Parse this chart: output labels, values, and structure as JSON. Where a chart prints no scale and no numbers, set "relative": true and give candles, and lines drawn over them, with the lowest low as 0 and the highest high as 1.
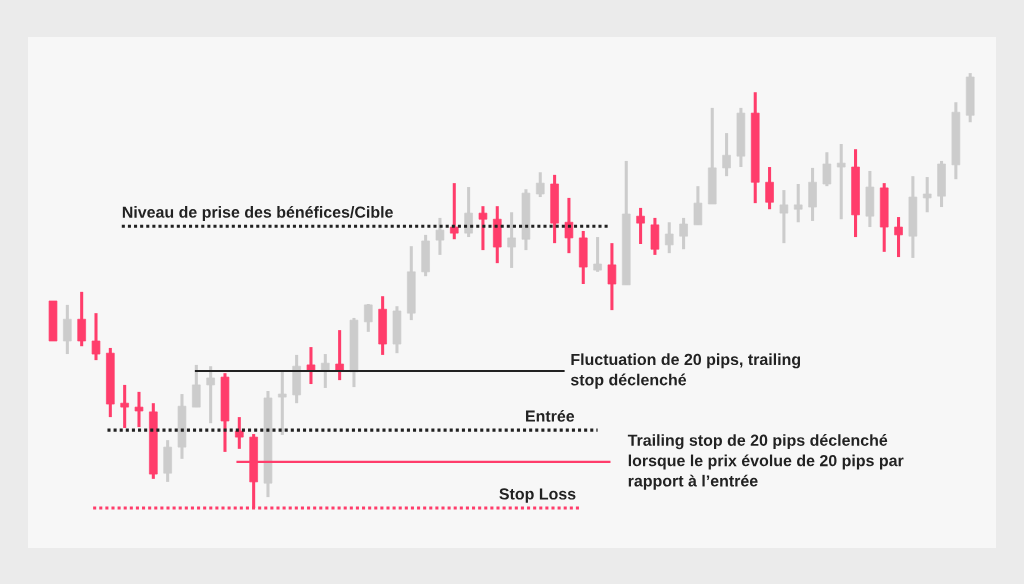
{
  "chart_data": {
    "type": "candlestick",
    "relative": true,
    "categories": [
      null,
      null,
      null,
      null,
      null,
      null,
      null,
      null,
      null,
      null,
      null,
      null,
      null,
      null,
      null,
      null,
      null,
      null,
      null,
      null,
      null,
      null,
      null,
      null,
      null,
      null,
      null,
      null,
      null,
      null,
      null,
      null,
      null,
      null,
      null,
      null,
      null,
      null,
      null,
      null,
      null,
      null,
      null,
      null,
      null,
      null,
      null,
      null,
      null,
      null,
      null,
      null,
      null,
      null,
      null,
      null,
      null,
      null,
      null,
      null,
      null,
      null,
      null,
      null,
      null
    ],
    "ohlc": [
      [
        0.476,
        0.476,
        0.384,
        0.384
      ],
      [
        0.384,
        0.467,
        0.354,
        0.434
      ],
      [
        0.434,
        0.497,
        0.372,
        0.384
      ],
      [
        0.384,
        0.448,
        0.34,
        0.354
      ],
      [
        0.356,
        0.368,
        0.209,
        0.239
      ],
      [
        0.241,
        0.283,
        0.184,
        0.232
      ],
      [
        0.232,
        0.267,
        0.186,
        0.223
      ],
      [
        0.221,
        0.241,
        0.067,
        0.078
      ],
      [
        0.08,
        0.156,
        0.06,
        0.14
      ],
      [
        0.14,
        0.262,
        0.113,
        0.234
      ],
      [
        0.232,
        0.329,
        0.232,
        0.283
      ],
      [
        0.283,
        0.326,
        0.195,
        0.299
      ],
      [
        0.301,
        0.31,
        0.129,
        0.2
      ],
      [
        0.177,
        0.209,
        0.136,
        0.163
      ],
      [
        0.163,
        0.17,
        0,
        0.06
      ],
      [
        0.057,
        0.269,
        0.025,
        0.253
      ],
      [
        0.255,
        0.313,
        0.168,
        0.262
      ],
      [
        0.26,
        0.352,
        0.241,
        0.326
      ],
      [
        0.329,
        0.37,
        0.285,
        0.315
      ],
      [
        0.317,
        0.354,
        0.276,
        0.333
      ],
      [
        0.331,
        0.409,
        0.294,
        0.317
      ],
      [
        0.313,
        0.437,
        0.278,
        0.432
      ],
      [
        0.428,
        0.469,
        0.405,
        0.467
      ],
      [
        0.457,
        0.487,
        0.352,
        0.377
      ],
      [
        0.377,
        0.464,
        0.356,
        0.453
      ],
      [
        0.448,
        0.602,
        0.432,
        0.543
      ],
      [
        0.543,
        0.628,
        0.533,
        0.614
      ],
      [
        0.616,
        0.667,
        0.582,
        0.639
      ],
      [
        0.646,
        0.747,
        0.618,
        0.632
      ],
      [
        0.632,
        0.738,
        0.623,
        0.678
      ],
      [
        0.678,
        0.694,
        0.593,
        0.664
      ],
      [
        0.664,
        0.694,
        0.563,
        0.6
      ],
      [
        0.6,
        0.68,
        0.552,
        0.621
      ],
      [
        0.618,
        0.733,
        0.593,
        0.724
      ],
      [
        0.722,
        0.772,
        0.715,
        0.747
      ],
      [
        0.745,
        0.766,
        0.609,
        0.655
      ],
      [
        0.657,
        0.713,
        0.586,
        0.621
      ],
      [
        0.621,
        0.637,
        0.515,
        0.554
      ],
      [
        0.547,
        0.623,
        0.543,
        0.561
      ],
      [
        0.559,
        0.609,
        0.455,
        0.515
      ],
      [
        0.513,
        0.798,
        0.513,
        0.676
      ],
      [
        0.671,
        0.69,
        0.607,
        0.655
      ],
      [
        0.651,
        0.667,
        0.582,
        0.595
      ],
      [
        0.605,
        0.657,
        0.586,
        0.63
      ],
      [
        0.625,
        0.667,
        0.595,
        0.653
      ],
      [
        0.651,
        0.74,
        0.651,
        0.701
      ],
      [
        0.699,
        0.92,
        0.699,
        0.782
      ],
      [
        0.782,
        0.862,
        0.763,
        0.811
      ],
      [
        0.809,
        0.92,
        0.784,
        0.908
      ],
      [
        0.908,
        0.956,
        0.701,
        0.749
      ],
      [
        0.749,
        0.784,
        0.687,
        0.703
      ],
      [
        0.678,
        0.731,
        0.609,
        0.697
      ],
      [
        0.687,
        0.745,
        0.657,
        0.697
      ],
      [
        0.692,
        0.782,
        0.66,
        0.749
      ],
      [
        0.745,
        0.818,
        0.74,
        0.791
      ],
      [
        0.784,
        0.837,
        0.664,
        0.793
      ],
      [
        0.784,
        0.825,
        0.623,
        0.674
      ],
      [
        0.671,
        0.775,
        0.646,
        0.738
      ],
      [
        0.736,
        0.747,
        0.589,
        0.646
      ],
      [
        0.646,
        0.669,
        0.577,
        0.628
      ],
      [
        0.625,
        0.763,
        0.575,
        0.715
      ],
      [
        0.713,
        0.761,
        0.68,
        0.722
      ],
      [
        0.717,
        0.798,
        0.692,
        0.791
      ],
      [
        0.789,
        0.933,
        0.756,
        0.91
      ],
      [
        0.903,
        1,
        0.887,
        0.991
      ]
    ],
    "colors": [
      "#ff3d6b",
      "#cccccc",
      "#ff3d6b",
      "#ff3d6b",
      "#ff3d6b",
      "#ff3d6b",
      "#ff3d6b",
      "#ff3d6b",
      "#cccccc",
      "#cccccc",
      "#cccccc",
      "#cccccc",
      "#ff3d6b",
      "#ff3d6b",
      "#ff3d6b",
      "#cccccc",
      "#cccccc",
      "#cccccc",
      "#ff3d6b",
      "#cccccc",
      "#ff3d6b",
      "#cccccc",
      "#cccccc",
      "#ff3d6b",
      "#cccccc",
      "#cccccc",
      "#cccccc",
      "#cccccc",
      "#ff3d6b",
      "#cccccc",
      "#ff3d6b",
      "#ff3d6b",
      "#cccccc",
      "#cccccc",
      "#cccccc",
      "#ff3d6b",
      "#ff3d6b",
      "#ff3d6b",
      "#cccccc",
      "#ff3d6b",
      "#cccccc",
      "#ff3d6b",
      "#ff3d6b",
      "#cccccc",
      "#cccccc",
      "#cccccc",
      "#cccccc",
      "#cccccc",
      "#cccccc",
      "#ff3d6b",
      "#ff3d6b",
      "#cccccc",
      "#cccccc",
      "#cccccc",
      "#cccccc",
      "#cccccc",
      "#ff3d6b",
      "#cccccc",
      "#ff3d6b",
      "#ff3d6b",
      "#cccccc",
      "#cccccc",
      "#cccccc",
      "#cccccc",
      "#cccccc"
    ],
    "ref_lines": [
      {
        "axis": "y",
        "value": 0.648,
        "label": "Niveau de prise des bénéfices/Cible",
        "color": "#222222",
        "line_style": "dotted"
      },
      {
        "axis": "y",
        "value": 0.315,
        "label": "Fluctuation de 20 pips, trailing\nstop déclenché",
        "color": "#222222",
        "line_style": "solid"
      },
      {
        "axis": "y",
        "value": 0.179,
        "label": "Entrée",
        "color": "#222222",
        "line_style": "dotted"
      },
      {
        "axis": "y",
        "value": 0.106,
        "label": "Trailing stop de 20 pips déclenché\nlorsque le prix évolue de 20 pips par\nrapport à l’entrée",
        "color": "#ff3d6b",
        "line_style": "solid"
      },
      {
        "axis": "y",
        "value": 0,
        "label": "Stop Loss",
        "color": "#ff3d6b",
        "line_style": "dotted"
      }
    ],
    "legend": false
  }
}
